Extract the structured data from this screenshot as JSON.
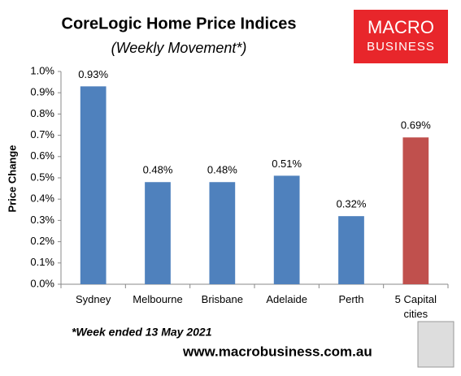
{
  "chart_data": {
    "type": "bar",
    "title": "CoreLogic Home Price Indices",
    "subtitle": "(Weekly Movement*)",
    "y_label": "Price Change",
    "categories": [
      "Sydney",
      "Melbourne",
      "Brisbane",
      "Adelaide",
      "Perth",
      "5 Capital cities"
    ],
    "values": [
      0.93,
      0.48,
      0.48,
      0.51,
      0.32,
      0.69
    ],
    "value_labels": [
      "0.93%",
      "0.48%",
      "0.48%",
      "0.51%",
      "0.32%",
      "0.69%"
    ],
    "colors": [
      "#4f81bd",
      "#4f81bd",
      "#4f81bd",
      "#4f81bd",
      "#4f81bd",
      "#c0504d"
    ],
    "ylim": [
      0,
      1
    ],
    "yticks": [
      {
        "value": 0,
        "label": "0.0%"
      },
      {
        "value": 0.1,
        "label": "0.1%"
      },
      {
        "value": 0.2,
        "label": "0.2%"
      },
      {
        "value": 0.3,
        "label": "0.3%"
      },
      {
        "value": 0.4,
        "label": "0.4%"
      },
      {
        "value": 0.5,
        "label": "0.5%"
      },
      {
        "value": 0.6,
        "label": "0.6%"
      },
      {
        "value": 0.7,
        "label": "0.7%"
      },
      {
        "value": 0.8,
        "label": "0.8%"
      },
      {
        "value": 0.9,
        "label": "0.9%"
      },
      {
        "value": 1,
        "label": "1.0%"
      }
    ],
    "grid": false
  },
  "footnote": "*Week ended 13 May 2021",
  "source": "www.macrobusiness.com.au",
  "logo": {
    "line1": "MACRO",
    "line2": "BUSINESS"
  }
}
